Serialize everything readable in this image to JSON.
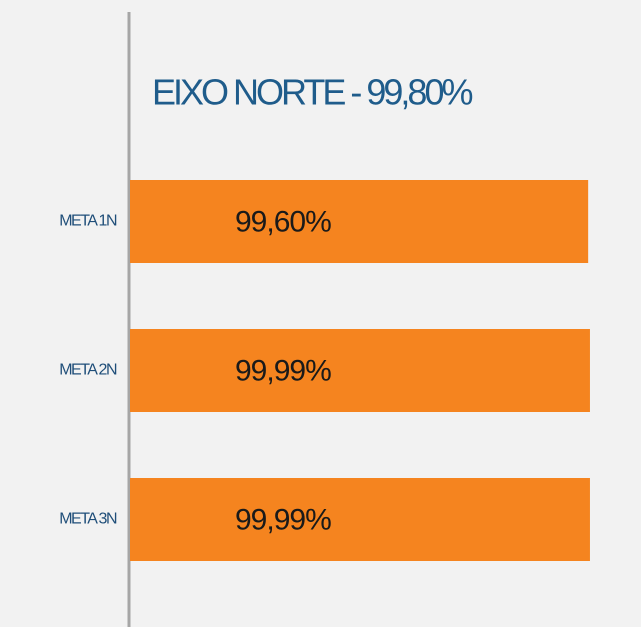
{
  "chart_data": {
    "type": "bar",
    "orientation": "horizontal",
    "title": "EIXO NORTE - 99,80%",
    "categories": [
      "META 1N",
      "META 2N",
      "META 3N"
    ],
    "values": [
      99.6,
      99.99,
      99.99
    ],
    "value_labels": [
      "99,60%",
      "99,99%",
      "99,99%"
    ],
    "color": "#f5841f"
  }
}
